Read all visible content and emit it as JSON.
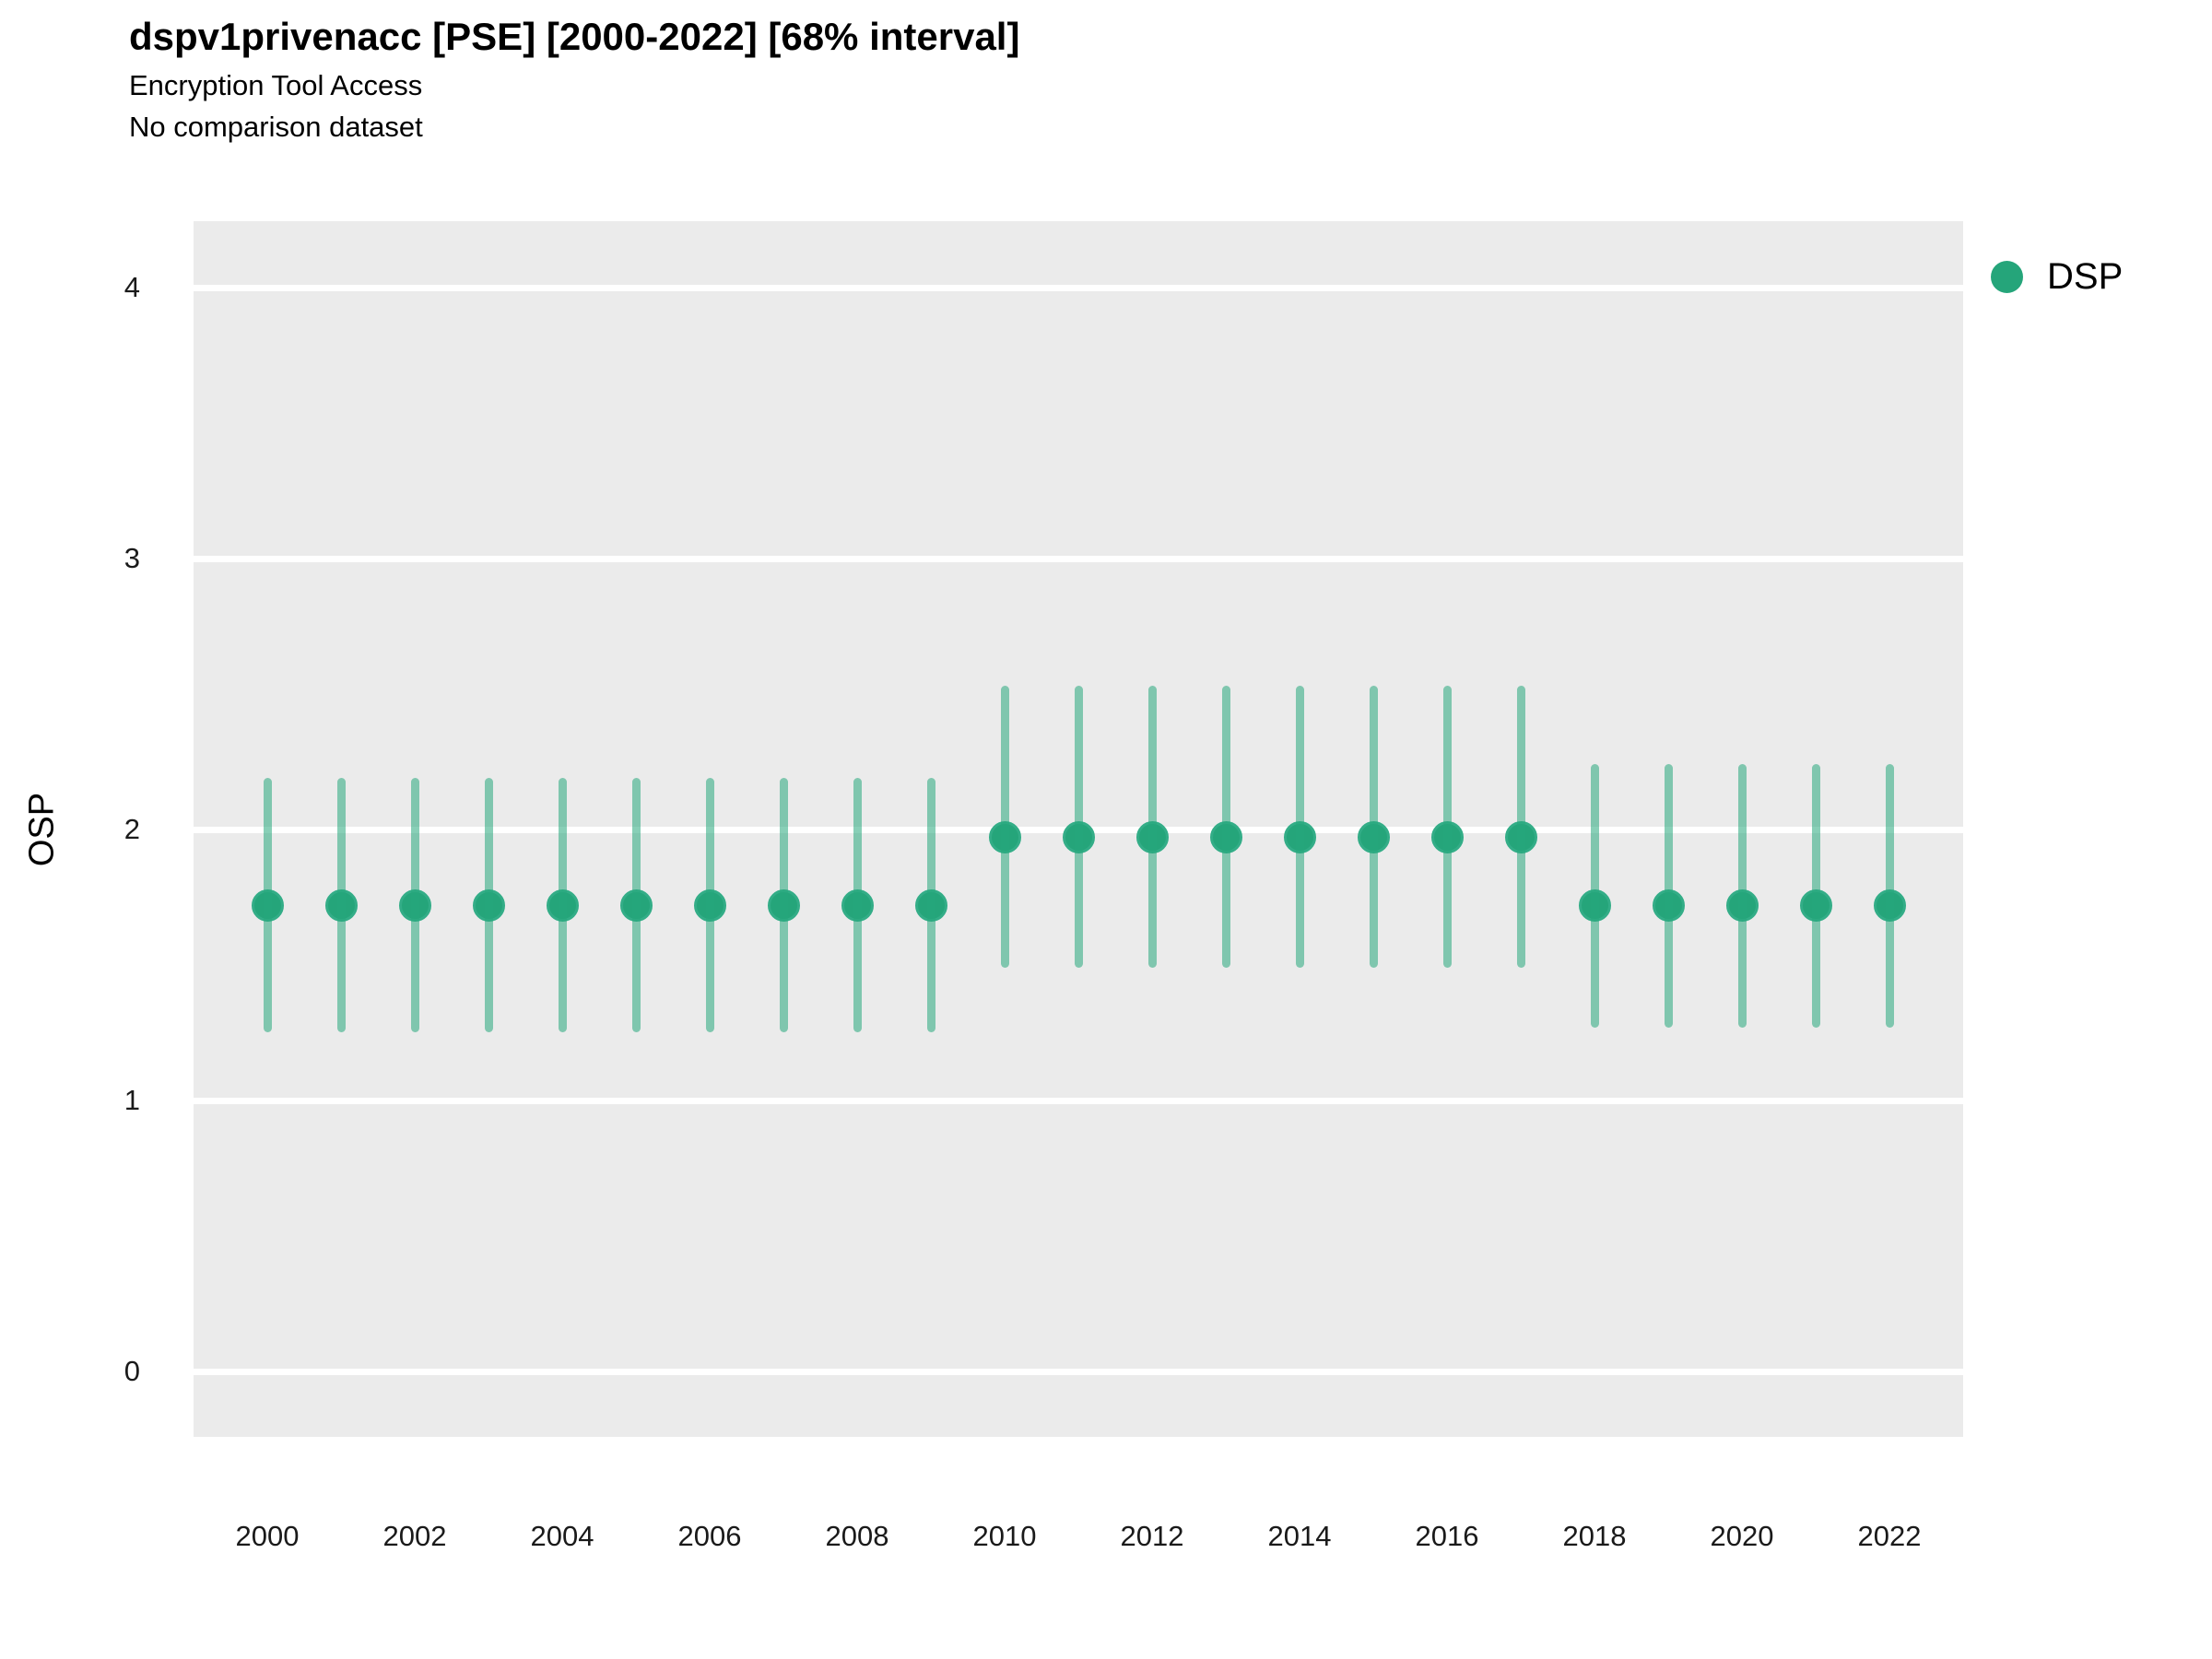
{
  "chart_data": {
    "type": "scatter",
    "subtype": "pointrange",
    "title": "dspv1privenacc [PSE] [2000-2022] [68% interval]",
    "subtitle": "Encryption Tool Access",
    "subtitle2": "No comparison dataset",
    "interval_label": "68% interval",
    "xlabel": "",
    "ylabel": "OSP",
    "x": [
      2000,
      2001,
      2002,
      2003,
      2004,
      2005,
      2006,
      2007,
      2008,
      2009,
      2010,
      2011,
      2012,
      2013,
      2014,
      2015,
      2016,
      2017,
      2018,
      2019,
      2020,
      2021,
      2022
    ],
    "series": [
      {
        "name": "DSP",
        "values": [
          1.72,
          1.72,
          1.72,
          1.72,
          1.72,
          1.72,
          1.72,
          1.72,
          1.72,
          1.72,
          1.97,
          1.97,
          1.97,
          1.97,
          1.97,
          1.97,
          1.97,
          1.97,
          1.72,
          1.72,
          1.72,
          1.72,
          1.72
        ],
        "interval_low": [
          1.25,
          1.25,
          1.25,
          1.25,
          1.25,
          1.25,
          1.25,
          1.25,
          1.25,
          1.25,
          1.49,
          1.49,
          1.49,
          1.49,
          1.49,
          1.49,
          1.49,
          1.49,
          1.27,
          1.27,
          1.27,
          1.27,
          1.27
        ],
        "interval_high": [
          2.19,
          2.19,
          2.19,
          2.19,
          2.19,
          2.19,
          2.19,
          2.19,
          2.19,
          2.19,
          2.53,
          2.53,
          2.53,
          2.53,
          2.53,
          2.53,
          2.53,
          2.53,
          2.24,
          2.24,
          2.24,
          2.24,
          2.24
        ],
        "color": "#25a57a",
        "ring_color": "#33ad87",
        "interval_color": "rgba(39,168,124,0.55)"
      }
    ],
    "ylim": [
      -0.25,
      4.25
    ],
    "yticks": [
      0,
      1,
      2,
      3,
      4
    ],
    "xticks": [
      2000,
      2002,
      2004,
      2006,
      2008,
      2010,
      2012,
      2014,
      2016,
      2018,
      2020,
      2022
    ],
    "grid": true,
    "gridline_color": "#ffffff",
    "panel_background": "#ebebeb",
    "tick_label_color": "#1a1a1a",
    "legend_position": "right"
  }
}
